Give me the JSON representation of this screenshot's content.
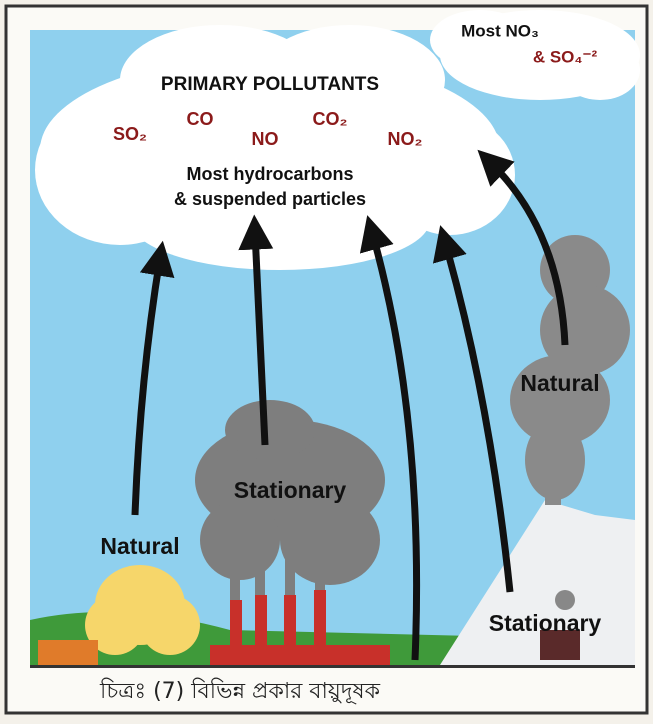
{
  "primary_cloud": {
    "title": "PRIMARY POLLUTANTS",
    "pollutants": [
      "SO₂",
      "CO",
      "NO",
      "CO₂",
      "NO₂"
    ],
    "lines": [
      "Most hydrocarbons",
      "& suspended particles"
    ]
  },
  "secondary_cloud": {
    "lines": [
      "Most NO₃",
      "& SO₄⁻²"
    ]
  },
  "sources": [
    "Natural",
    "Stationary",
    "Natural",
    "Stationary"
  ],
  "caption": "চিত্রঃ (7) বিভিন্ন প্রকার বায়ুদূষক"
}
